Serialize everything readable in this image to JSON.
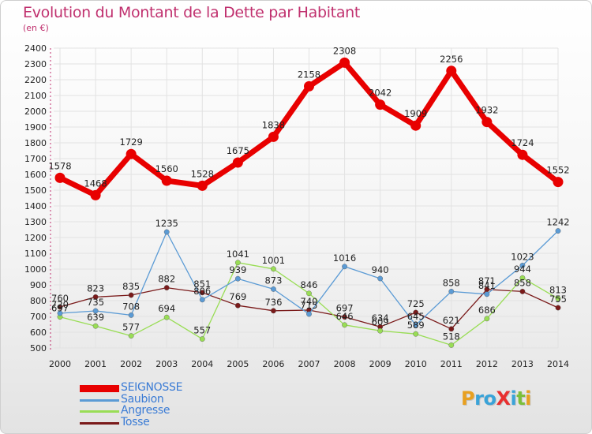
{
  "header": {
    "title": "Evolution du Montant de la Dette par Habitant",
    "subtitle": "(en €)"
  },
  "logo": {
    "text": "ProXiti",
    "letters": [
      {
        "ch": "P",
        "color": "#e8a020"
      },
      {
        "ch": "r",
        "color": "#3aa3d8"
      },
      {
        "ch": "o",
        "color": "#3aa3d8"
      },
      {
        "ch": "X",
        "color": "#e83030"
      },
      {
        "ch": "i",
        "color": "#3aa3d8"
      },
      {
        "ch": "t",
        "color": "#7cbf3a"
      },
      {
        "ch": "i",
        "color": "#e8a020"
      }
    ]
  },
  "chart_data": {
    "type": "line",
    "title": "Evolution du Montant de la Dette par Habitant",
    "subtitle": "(en €)",
    "x": [
      "2000",
      "2001",
      "2002",
      "2003",
      "2004",
      "2005",
      "2006",
      "2007",
      "2008",
      "2009",
      "2010",
      "2011",
      "2012",
      "2013",
      "2014"
    ],
    "ylim": [
      500,
      2400
    ],
    "yticks": [
      500,
      600,
      700,
      800,
      900,
      1000,
      1100,
      1200,
      1300,
      1400,
      1500,
      1600,
      1700,
      1800,
      1900,
      2000,
      2100,
      2200,
      2300,
      2400
    ],
    "grid": true,
    "legend_position": "bottom-left",
    "series": [
      {
        "name": "SEIGNOSSE",
        "color": "#e80000",
        "width": 7,
        "marker": 6.5,
        "values": [
          1578,
          1468,
          1729,
          1560,
          1528,
          1675,
          1838,
          2158,
          2308,
          2042,
          1909,
          2256,
          1932,
          1724,
          1552
        ],
        "labels": [
          "1578",
          "1468",
          "1729",
          "1560",
          "1528",
          "1675",
          "1838",
          "2158",
          "2308",
          "2042",
          "1909",
          "2256",
          "1932",
          "1724",
          "1552"
        ]
      },
      {
        "name": "Saubion",
        "color": "#5b9bd5",
        "width": 1.3,
        "marker": 3.2,
        "values": [
          720,
          735,
          708,
          1235,
          806,
          939,
          873,
          715,
          1016,
          940,
          645,
          858,
          841,
          1023,
          1242
        ],
        "labels": [
          "720",
          "735",
          "708",
          "1235",
          "806",
          "939",
          "873",
          "715",
          "1016",
          "940",
          "645",
          "858",
          "841",
          "1023",
          "1242"
        ]
      },
      {
        "name": "Angresse",
        "color": "#99dd55",
        "width": 1.3,
        "marker": 3.2,
        "values": [
          697,
          639,
          577,
          694,
          557,
          1041,
          1001,
          846,
          646,
          609,
          589,
          518,
          686,
          944,
          813
        ],
        "labels": [
          "697",
          "639",
          "577",
          "694",
          "557",
          "1041",
          "1001",
          "846",
          "646",
          "609",
          "589",
          "518",
          "686",
          "944",
          "813"
        ]
      },
      {
        "name": "Tosse",
        "color": "#7a1a1a",
        "width": 1.3,
        "marker": 3.2,
        "values": [
          760,
          823,
          835,
          882,
          851,
          769,
          736,
          740,
          697,
          634,
          725,
          621,
          871,
          858,
          755
        ],
        "labels": [
          "760",
          "823",
          "835",
          "882",
          "851",
          "769",
          "736",
          "740",
          "697",
          "634",
          "725",
          "621",
          "871",
          "858",
          "755"
        ]
      }
    ]
  }
}
